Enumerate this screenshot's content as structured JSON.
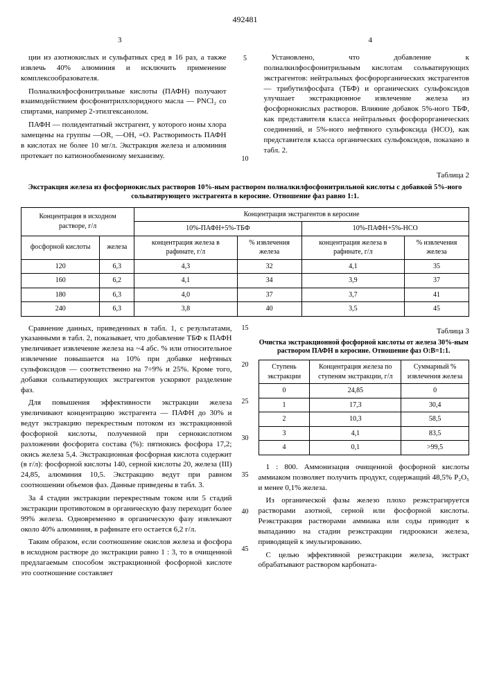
{
  "doc_number": "492481",
  "page_left": "3",
  "page_right": "4",
  "top_left_text": {
    "p1": "ции из азотнокислых и сульфатных сред в 16 раз, а также извлечь 40% алюминия и исключить применение комплексообразователя.",
    "p2": "Полиалкилфосфонитрильные кислоты (ПАФН) получают взаимодействием фосфонитрилхлоридного масла — PNCl₂ со спиртами, например 2-этилгексанолом.",
    "p3": "ПАФН — полидентатный экстрагент, у которого ионы хлора замещены на группы —OR, —OH, =O. Растворимость ПАФН в кислотах не более 10 мг/л. Экстракция железа и алюминия протекает по катионообменному механизму."
  },
  "top_right_text": {
    "p1": "Установлено, что добавление к полиалкилфосфонитрильным кислотам сольватирующих экстрагентов: нейтральных фосфорорганических экстрагентов — трибутилфосфата (ТБФ) и органических сульфоксидов улучшает экстракционное извлечение железа из фосфорнокислых растворов. Влияние добавок 5%-ного ТБФ, как представителя класса нейтральных фосфорорганических соединений, и 5%-ного нефтяного сульфоксида (НСО), как представителя класса органических сульфоксидов, показано в табл. 2."
  },
  "line_nums_top": [
    "5",
    "10"
  ],
  "table2": {
    "caption": "Таблица 2",
    "title": "Экстракция железа из фосфорнокислых растворов 10%-ным раствором полиалкилфосфонитрильной кислоты с добавкой 5%-ного сольватирующего экстрагента в керосине. Отношение фаз равно 1:1.",
    "head_conc": "Концентрация в исходном растворе, г/л",
    "head_extr": "Концентрация экстрагентов в керосине",
    "head_tbf": "10%-ПАФН+5%-ТБФ",
    "head_nso": "10%-ПАФН+5%-НСО",
    "col_phos": "фосфорной кислоты",
    "col_fe": "железа",
    "col_raff": "концентрация железа в рафинате, г/л",
    "col_extr": "% извлечения железа",
    "rows": [
      [
        "120",
        "6,3",
        "4,3",
        "32",
        "4,1",
        "35"
      ],
      [
        "160",
        "6,2",
        "4,1",
        "34",
        "3,9",
        "37"
      ],
      [
        "180",
        "6,3",
        "4,0",
        "37",
        "3,7",
        "41"
      ],
      [
        "240",
        "6,3",
        "3,8",
        "40",
        "3,5",
        "45"
      ]
    ]
  },
  "mid_left_text": {
    "p1": "Сравнение данных, приведенных в табл. 1, с результатами, указанными в табл. 2, показывает, что добавление ТБФ к ПАФН увеличивает извлечение железа на ~4 абс. % или относительное извлечение повышается на 10% при добавке нефтяных сульфоксидов — соответственно на 7÷9% и 25%. Кроме того, добавки сольватирующих экстрагентов ускоряют разделение фаз.",
    "p2": "Для повышения эффективности экстракции железа увеличивают концентрацию экстрагента — ПАФН до 30% и ведут экстракцию перекрестным потоком из экстракционной фосфорной кислоты, полученной при сернокислотном разложении фосфорита состава (%): пятиокись фосфора 17,2; окись железа 5,4. Экстракционная фосфорная кислота содержит (в г/л): фосфорной кислоты 140, серной кислоты 20, железа (III) 24,85, алюминия 10,5. Экстракцию ведут при равном соотношении объемов фаз. Данные приведены в табл. 3.",
    "p3": "За 4 стадии экстракции перекрестным током или 5 стадий экстракции противотоком в органическую фазу переходит более 99% железа. Одновременно в органическую фазу извлекают около 40% алюминия, в рафинате его остается 6,2 г/л.",
    "p4": "Таким образом, если соотношение окислов железа и фосфора в исходном растворе до экстракции равно 1 : 3, то в очищенной предлагаемым способом экстракционной фосфорной кислоте это соотношение составляет"
  },
  "line_nums_mid": [
    "15",
    "20",
    "25",
    "30",
    "35",
    "40",
    "45"
  ],
  "table3": {
    "caption": "Таблица 3",
    "title": "Очистка экстракционной фосфорной кислоты от железа 30%-ным раствором ПАФН в керосине. Отношение фаз О:В=1:1.",
    "col_step": "Ступень экстракции",
    "col_conc": "Концентрация железа по ступеням экстракции, г/л",
    "col_sum": "Суммарный % извлечения железа",
    "rows": [
      [
        "0",
        "24,85",
        "0"
      ],
      [
        "1",
        "17,3",
        "30,4"
      ],
      [
        "2",
        "10,3",
        "58,5"
      ],
      [
        "3",
        "4,1",
        "83,5"
      ],
      [
        "4",
        "0,1",
        ">99,5"
      ]
    ]
  },
  "mid_right_text": {
    "p1": "1 : 800. Аммонизация очищенной фосфорной кислоты аммиаком позволяет получить продукт, содержащий 48,5% P₂O₅ и менее 0,1% железа.",
    "p2": "Из органической фазы железо плохо реэкстрагируется растворами азотной, серной или фосфорной кислоты. Реэкстракция растворами аммиака или соды приводит к выпаданию на стадии реэкстракции гидроокиси железа, приводящей к эмульгированию.",
    "p3": "С целью эффективной реэкстракции железа, экстракт обрабатывают раствором карбоната-"
  }
}
